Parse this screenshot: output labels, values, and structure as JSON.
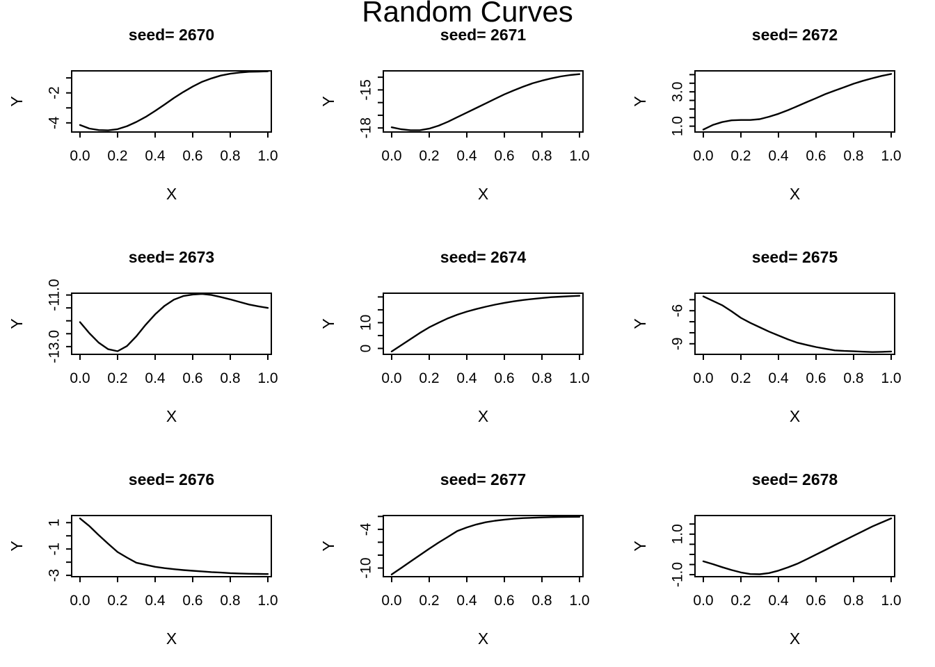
{
  "page_title": "Random Curves",
  "colors": {
    "curve": "#000000",
    "axis": "#000000",
    "background": "#ffffff"
  },
  "chart_data": [
    {
      "type": "line",
      "title": "seed= 2670",
      "xlabel": "X",
      "ylabel": "Y",
      "xlim": [
        0,
        1
      ],
      "ylim": [
        -4.61,
        -0.53
      ],
      "grid": false,
      "xticks": {
        "values": [
          0,
          0.2,
          0.4,
          0.6,
          0.8,
          1
        ],
        "labels": [
          "0.0",
          "0.2",
          "0.4",
          "0.6",
          "0.8",
          "1.0"
        ]
      },
      "yticks": {
        "values": [
          -4,
          -3,
          -2,
          -1
        ],
        "labels": [
          "-4",
          "",
          "-2",
          ""
        ]
      },
      "x": [
        0,
        0.05,
        0.1,
        0.15,
        0.2,
        0.25,
        0.3,
        0.35,
        0.4,
        0.45,
        0.5,
        0.55,
        0.6,
        0.65,
        0.7,
        0.75,
        0.8,
        0.85,
        0.9,
        0.95,
        1
      ],
      "y": [
        -4.14,
        -4.38,
        -4.48,
        -4.5,
        -4.42,
        -4.22,
        -3.94,
        -3.6,
        -3.2,
        -2.78,
        -2.34,
        -1.94,
        -1.58,
        -1.26,
        -1.03,
        -0.84,
        -0.72,
        -0.64,
        -0.59,
        -0.58,
        -0.56
      ]
    },
    {
      "type": "line",
      "title": "seed= 2671",
      "xlabel": "X",
      "ylabel": "Y",
      "xlim": [
        0,
        1
      ],
      "ylim": [
        -18.32,
        -13.5
      ],
      "grid": false,
      "xticks": {
        "values": [
          0,
          0.2,
          0.4,
          0.6,
          0.8,
          1
        ],
        "labels": [
          "0.0",
          "0.2",
          "0.4",
          "0.6",
          "0.8",
          "1.0"
        ]
      },
      "yticks": {
        "values": [
          -18,
          -17,
          -16,
          -15,
          -14
        ],
        "labels": [
          "-18",
          "",
          "",
          "-15",
          ""
        ]
      },
      "x": [
        0,
        0.05,
        0.1,
        0.15,
        0.2,
        0.25,
        0.3,
        0.35,
        0.4,
        0.45,
        0.5,
        0.55,
        0.6,
        0.65,
        0.7,
        0.75,
        0.8,
        0.85,
        0.9,
        0.95,
        1
      ],
      "y": [
        -17.95,
        -18.1,
        -18.18,
        -18.18,
        -18.05,
        -17.82,
        -17.51,
        -17.15,
        -16.79,
        -16.43,
        -16.07,
        -15.71,
        -15.35,
        -15.04,
        -14.75,
        -14.48,
        -14.27,
        -14.09,
        -13.94,
        -13.83,
        -13.76
      ]
    },
    {
      "type": "line",
      "title": "seed= 2672",
      "xlabel": "X",
      "ylabel": "Y",
      "xlim": [
        0,
        1
      ],
      "ylim": [
        0.66,
        4.22
      ],
      "grid": false,
      "xticks": {
        "values": [
          0,
          0.2,
          0.4,
          0.6,
          0.8,
          1
        ],
        "labels": [
          "0.0",
          "0.2",
          "0.4",
          "0.6",
          "0.8",
          "1.0"
        ]
      },
      "yticks": {
        "values": [
          1,
          1.5,
          2,
          2.5,
          3,
          3.5,
          4
        ],
        "labels": [
          "1.0",
          "",
          "",
          "",
          "3.0",
          "",
          ""
        ]
      },
      "x": [
        0,
        0.05,
        0.1,
        0.15,
        0.2,
        0.25,
        0.3,
        0.35,
        0.4,
        0.45,
        0.5,
        0.55,
        0.6,
        0.65,
        0.7,
        0.75,
        0.8,
        0.85,
        0.9,
        0.95,
        1
      ],
      "y": [
        0.8,
        1.07,
        1.24,
        1.34,
        1.36,
        1.36,
        1.41,
        1.55,
        1.72,
        1.93,
        2.16,
        2.4,
        2.63,
        2.87,
        3.07,
        3.27,
        3.47,
        3.64,
        3.79,
        3.93,
        4.04
      ]
    },
    {
      "type": "line",
      "title": "seed= 2673",
      "xlabel": "X",
      "ylabel": "Y",
      "xlim": [
        0,
        1
      ],
      "ylim": [
        -13.3,
        -10.93
      ],
      "grid": false,
      "xticks": {
        "values": [
          0,
          0.2,
          0.4,
          0.6,
          0.8,
          1
        ],
        "labels": [
          "0.0",
          "0.2",
          "0.4",
          "0.6",
          "0.8",
          "1.0"
        ]
      },
      "yticks": {
        "values": [
          -13,
          -12.5,
          -12,
          -11.5,
          -11
        ],
        "labels": [
          "-13.0",
          "",
          "",
          "",
          "-11.0"
        ]
      },
      "x": [
        0,
        0.05,
        0.1,
        0.15,
        0.2,
        0.25,
        0.3,
        0.35,
        0.4,
        0.45,
        0.5,
        0.55,
        0.6,
        0.65,
        0.7,
        0.75,
        0.8,
        0.85,
        0.9,
        0.95,
        1
      ],
      "y": [
        -12.05,
        -12.48,
        -12.85,
        -13.1,
        -13.18,
        -12.98,
        -12.6,
        -12.15,
        -11.75,
        -11.42,
        -11.18,
        -11.04,
        -10.98,
        -10.96,
        -11.0,
        -11.08,
        -11.17,
        -11.27,
        -11.37,
        -11.44,
        -11.5
      ]
    },
    {
      "type": "line",
      "title": "seed= 2674",
      "xlabel": "X",
      "ylabel": "Y",
      "xlim": [
        0,
        1
      ],
      "ylim": [
        -2.3,
        21.45
      ],
      "grid": false,
      "xticks": {
        "values": [
          0,
          0.2,
          0.4,
          0.6,
          0.8,
          1
        ],
        "labels": [
          "0.0",
          "0.2",
          "0.4",
          "0.6",
          "0.8",
          "1.0"
        ]
      },
      "yticks": {
        "values": [
          0,
          5,
          10,
          15,
          20
        ],
        "labels": [
          "0",
          "",
          "10",
          "",
          ""
        ]
      },
      "x": [
        0,
        0.05,
        0.1,
        0.15,
        0.2,
        0.25,
        0.3,
        0.35,
        0.4,
        0.45,
        0.5,
        0.55,
        0.6,
        0.65,
        0.7,
        0.75,
        0.8,
        0.85,
        0.9,
        0.95,
        1
      ],
      "y": [
        -1.2,
        1.2,
        3.6,
        6.0,
        8.2,
        10.0,
        11.7,
        13.1,
        14.3,
        15.3,
        16.2,
        17.0,
        17.7,
        18.3,
        18.8,
        19.2,
        19.6,
        19.9,
        20.1,
        20.3,
        20.45
      ]
    },
    {
      "type": "line",
      "title": "seed= 2675",
      "xlabel": "X",
      "ylabel": "Y",
      "xlim": [
        0,
        1
      ],
      "ylim": [
        -9.96,
        -4.41
      ],
      "grid": false,
      "xticks": {
        "values": [
          0,
          0.2,
          0.4,
          0.6,
          0.8,
          1
        ],
        "labels": [
          "0.0",
          "0.2",
          "0.4",
          "0.6",
          "0.8",
          "1.0"
        ]
      },
      "yticks": {
        "values": [
          -9,
          -8,
          -7,
          -6,
          -5
        ],
        "labels": [
          "-9",
          "",
          "",
          "-6",
          ""
        ]
      },
      "x": [
        0,
        0.05,
        0.1,
        0.15,
        0.2,
        0.25,
        0.3,
        0.35,
        0.4,
        0.45,
        0.5,
        0.55,
        0.6,
        0.65,
        0.7,
        0.75,
        0.8,
        0.85,
        0.9,
        0.95,
        1
      ],
      "y": [
        -4.7,
        -5.1,
        -5.5,
        -6.05,
        -6.65,
        -7.1,
        -7.5,
        -7.9,
        -8.25,
        -8.6,
        -8.9,
        -9.1,
        -9.3,
        -9.45,
        -9.6,
        -9.65,
        -9.68,
        -9.72,
        -9.75,
        -9.73,
        -9.7
      ]
    },
    {
      "type": "line",
      "title": "seed= 2676",
      "xlabel": "X",
      "ylabel": "Y",
      "xlim": [
        0,
        1
      ],
      "ylim": [
        -3.1,
        1.54
      ],
      "grid": false,
      "xticks": {
        "values": [
          0,
          0.2,
          0.4,
          0.6,
          0.8,
          1
        ],
        "labels": [
          "0.0",
          "0.2",
          "0.4",
          "0.6",
          "0.8",
          "1.0"
        ]
      },
      "yticks": {
        "values": [
          -3,
          -2,
          -1,
          0,
          1
        ],
        "labels": [
          "-3",
          "",
          "-1",
          "",
          "1"
        ]
      },
      "x": [
        0,
        0.05,
        0.1,
        0.15,
        0.2,
        0.25,
        0.3,
        0.35,
        0.4,
        0.45,
        0.5,
        0.55,
        0.6,
        0.65,
        0.7,
        0.75,
        0.8,
        0.85,
        0.9,
        0.95,
        1
      ],
      "y": [
        1.32,
        0.74,
        0.05,
        -0.6,
        -1.23,
        -1.65,
        -2.04,
        -2.2,
        -2.35,
        -2.45,
        -2.53,
        -2.6,
        -2.65,
        -2.7,
        -2.75,
        -2.79,
        -2.83,
        -2.86,
        -2.88,
        -2.89,
        -2.9
      ]
    },
    {
      "type": "line",
      "title": "seed= 2677",
      "xlabel": "X",
      "ylabel": "Y",
      "xlim": [
        0,
        1
      ],
      "ylim": [
        -11.34,
        -1.86
      ],
      "grid": false,
      "xticks": {
        "values": [
          0,
          0.2,
          0.4,
          0.6,
          0.8,
          1
        ],
        "labels": [
          "0.0",
          "0.2",
          "0.4",
          "0.6",
          "0.8",
          "1.0"
        ]
      },
      "yticks": {
        "values": [
          -10,
          -8,
          -6,
          -4,
          -2
        ],
        "labels": [
          "-10",
          "",
          "",
          "-4",
          ""
        ]
      },
      "x": [
        0,
        0.05,
        0.1,
        0.15,
        0.2,
        0.25,
        0.3,
        0.35,
        0.4,
        0.45,
        0.5,
        0.55,
        0.6,
        0.65,
        0.7,
        0.75,
        0.8,
        0.85,
        0.9,
        0.95,
        1
      ],
      "y": [
        -11.0,
        -10.0,
        -9.0,
        -8.0,
        -7.0,
        -6.05,
        -5.16,
        -4.25,
        -3.7,
        -3.25,
        -2.9,
        -2.67,
        -2.5,
        -2.36,
        -2.26,
        -2.2,
        -2.15,
        -2.11,
        -2.08,
        -2.06,
        -2.05
      ]
    },
    {
      "type": "line",
      "title": "seed= 2678",
      "xlabel": "X",
      "ylabel": "Y",
      "xlim": [
        0,
        1
      ],
      "ylim": [
        -1.1,
        1.92
      ],
      "grid": false,
      "xticks": {
        "values": [
          0,
          0.2,
          0.4,
          0.6,
          0.8,
          1
        ],
        "labels": [
          "0.0",
          "0.2",
          "0.4",
          "0.6",
          "0.8",
          "1.0"
        ]
      },
      "yticks": {
        "values": [
          -1,
          -0.5,
          0,
          0.5,
          1,
          1.5
        ],
        "labels": [
          "-1.0",
          "",
          "",
          "",
          "1.0",
          ""
        ]
      },
      "x": [
        0,
        0.05,
        0.1,
        0.15,
        0.2,
        0.25,
        0.3,
        0.35,
        0.4,
        0.45,
        0.5,
        0.55,
        0.6,
        0.65,
        0.7,
        0.75,
        0.8,
        0.85,
        0.9,
        0.95,
        1
      ],
      "y": [
        -0.34,
        -0.48,
        -0.63,
        -0.77,
        -0.89,
        -0.97,
        -0.98,
        -0.92,
        -0.8,
        -0.64,
        -0.46,
        -0.24,
        -0.01,
        0.22,
        0.46,
        0.69,
        0.92,
        1.15,
        1.38,
        1.58,
        1.78
      ]
    }
  ]
}
